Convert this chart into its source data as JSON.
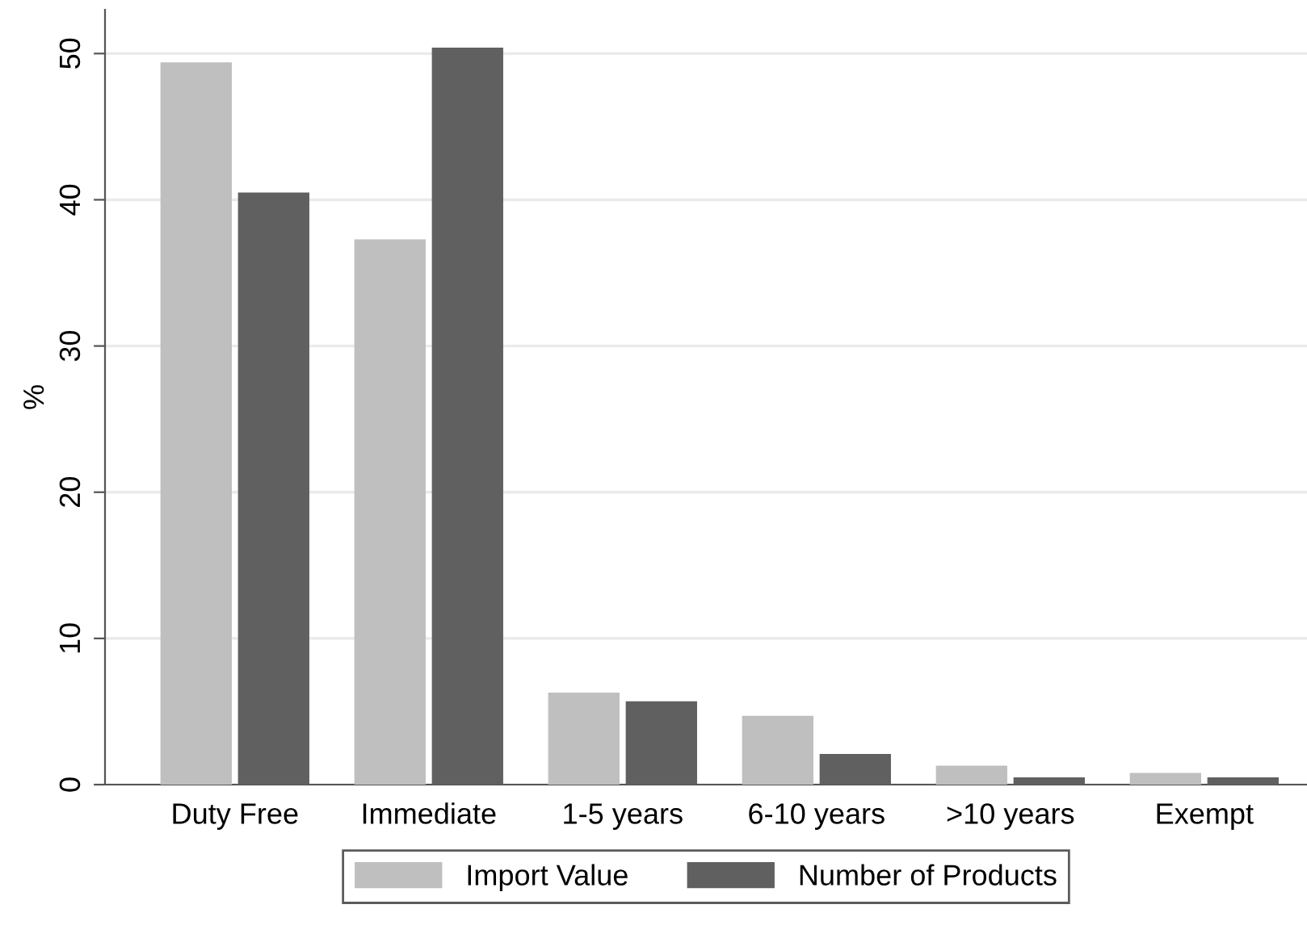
{
  "chart_data": {
    "type": "bar",
    "ylabel": "%",
    "categories": [
      "Duty Free",
      "Immediate",
      "1-5 years",
      "6-10 years",
      ">10 years",
      "Exempt"
    ],
    "series": [
      {
        "name": "Import Value",
        "color": "#bfbfbf",
        "values": [
          49.4,
          37.3,
          6.3,
          4.7,
          1.3,
          0.8
        ]
      },
      {
        "name": "Number of Products",
        "color": "#606060",
        "values": [
          40.5,
          50.4,
          5.7,
          2.1,
          0.5,
          0.5
        ]
      }
    ],
    "ylim": [
      0,
      53
    ],
    "yticks": [
      0,
      10,
      20,
      30,
      40,
      50
    ],
    "grid": "y",
    "legend": "bottom"
  }
}
